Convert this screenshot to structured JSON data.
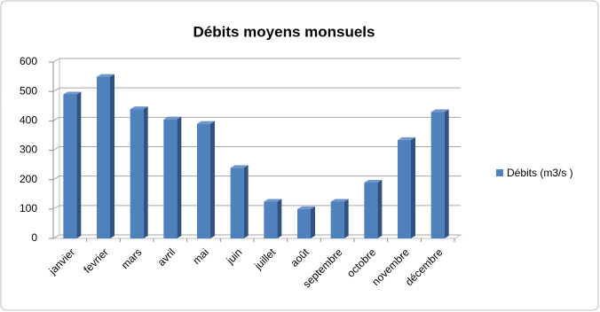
{
  "chart_data": {
    "type": "bar",
    "title": "Débits moyens monsuels",
    "categories": [
      "janvier",
      "fevrier",
      "mars",
      "avril",
      "mai",
      "juin",
      "juillet",
      "août",
      "septembre",
      "octobre",
      "novembre",
      "décembre"
    ],
    "series": [
      {
        "name": "Débits (m3/s )",
        "color": "#4f81bd",
        "values": [
          490,
          550,
          440,
          405,
          390,
          240,
          125,
          100,
          125,
          190,
          335,
          430
        ]
      }
    ],
    "ylim": [
      0,
      600
    ],
    "yticks": [
      0,
      100,
      200,
      300,
      400,
      500,
      600
    ],
    "grid": true,
    "legend": "right"
  }
}
